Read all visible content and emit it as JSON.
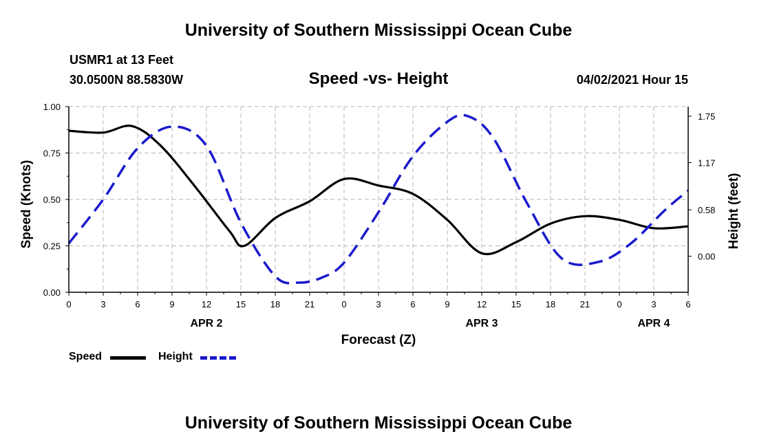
{
  "header": {
    "title": "University of Southern Mississippi Ocean Cube",
    "station": "USMR1 at 13 Feet",
    "coords": "30.0500N  88.5830W",
    "subtitle": "Speed -vs- Height",
    "date": "04/02/2021 Hour 15"
  },
  "footer": {
    "title": "University of Southern Mississippi Ocean Cube"
  },
  "legend": {
    "speed_label": "Speed",
    "height_label": "Height"
  },
  "colors": {
    "speed": "#000000",
    "height": "#1a1acd",
    "grid": "#b4b4b4"
  },
  "chart_data": {
    "type": "line",
    "title": "Speed -vs- Height",
    "xlabel": "Forecast (Z)",
    "ylabel": "Speed (Knots)",
    "y2label": "Height (feet)",
    "x_range": [
      0,
      54
    ],
    "ylim": [
      0,
      1
    ],
    "y2lim": [
      -0.45,
      1.87
    ],
    "x_ticks": [
      0,
      3,
      6,
      9,
      12,
      15,
      18,
      21,
      24,
      27,
      30,
      33,
      36,
      39,
      42,
      45,
      48,
      51,
      54
    ],
    "x_tick_labels": [
      "0",
      "3",
      "6",
      "9",
      "12",
      "15",
      "18",
      "21",
      "0",
      "3",
      "6",
      "9",
      "12",
      "15",
      "18",
      "21",
      "0",
      "3",
      "6"
    ],
    "date_labels": [
      {
        "x": 12,
        "label": "APR 2"
      },
      {
        "x": 36,
        "label": "APR 3"
      },
      {
        "x": 51,
        "label": "APR 4"
      }
    ],
    "y_ticks": [
      0,
      0.25,
      0.5,
      0.75,
      1.0
    ],
    "y_tick_labels": [
      "0.00",
      "0.25",
      "0.50",
      "0.75",
      "1.00"
    ],
    "y2_ticks": [
      0,
      0.58,
      1.17,
      1.75
    ],
    "y2_tick_labels": [
      "0.00",
      "0.58",
      "1.17",
      "1.75"
    ],
    "grid": true,
    "series": [
      {
        "name": "Speed",
        "axis": "left",
        "style": "solid",
        "x": [
          0,
          3,
          5.5,
          8,
          11,
          14,
          15.3,
          18,
          21,
          24,
          27,
          30,
          33,
          36,
          39,
          42,
          45,
          48,
          51,
          54
        ],
        "values": [
          0.87,
          0.86,
          0.895,
          0.79,
          0.57,
          0.33,
          0.25,
          0.4,
          0.49,
          0.61,
          0.575,
          0.53,
          0.39,
          0.21,
          0.27,
          0.37,
          0.41,
          0.39,
          0.345,
          0.355
        ]
      },
      {
        "name": "Height",
        "axis": "right",
        "style": "dashed",
        "x": [
          0,
          3,
          6,
          9,
          12,
          15,
          18,
          20,
          22,
          24,
          27,
          30,
          33,
          34.8,
          37,
          40,
          43,
          46.2,
          49,
          52,
          54
        ],
        "values": [
          0.16,
          0.71,
          1.35,
          1.62,
          1.38,
          0.42,
          -0.25,
          -0.33,
          -0.27,
          -0.08,
          0.55,
          1.25,
          1.68,
          1.75,
          1.48,
          0.65,
          -0.03,
          -0.07,
          0.16,
          0.58,
          0.82
        ]
      }
    ]
  }
}
